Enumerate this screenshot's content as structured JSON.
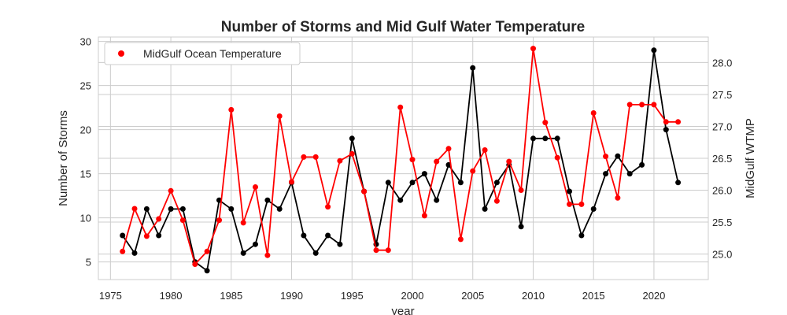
{
  "chart_data": {
    "type": "line",
    "title": "Number of Storms and Mid Gulf Water Temperature",
    "xlabel": "year",
    "ylabel": "Number of Storms",
    "ylabel_right": "MidGulf WTMP",
    "x": [
      1976,
      1977,
      1978,
      1979,
      1980,
      1981,
      1982,
      1983,
      1984,
      1985,
      1986,
      1987,
      1988,
      1989,
      1990,
      1991,
      1992,
      1993,
      1994,
      1995,
      1996,
      1997,
      1998,
      1999,
      2000,
      2001,
      2002,
      2003,
      2004,
      2005,
      2006,
      2007,
      2008,
      2009,
      2010,
      2011,
      2012,
      2013,
      2014,
      2015,
      2016,
      2017,
      2018,
      2019,
      2020,
      2021,
      2022
    ],
    "xlim": [
      1974,
      2024.5
    ],
    "xticks": [
      "1975",
      "1980",
      "1985",
      "1990",
      "1995",
      "2000",
      "2005",
      "2010",
      "2015",
      "2020"
    ],
    "ylim": [
      3,
      30.5
    ],
    "yticks": [
      "5",
      "10",
      "15",
      "20",
      "25",
      "30"
    ],
    "y2lim": [
      24.6,
      28.4
    ],
    "y2ticks": [
      "25.0",
      "25.5",
      "26.0",
      "26.5",
      "27.0",
      "27.5",
      "28.0"
    ],
    "grid": true,
    "legend_placement": "top-left",
    "series": [
      {
        "axis": "left",
        "color": "#000000",
        "values": [
          8,
          6,
          11,
          8,
          11,
          11,
          5,
          4,
          12,
          11,
          6,
          7,
          12,
          11,
          14,
          8,
          6,
          8,
          7,
          19,
          13,
          7,
          14,
          12,
          14,
          15,
          12,
          16,
          14,
          27,
          11,
          14,
          16,
          9,
          19,
          19,
          19,
          13,
          8,
          11,
          15,
          17,
          15,
          16,
          29,
          20,
          14
        ]
      },
      {
        "axis": "right",
        "name": "MidGulf Ocean Temperature",
        "color": "#ff0000",
        "values": [
          25.04,
          25.71,
          25.28,
          25.55,
          25.99,
          25.53,
          24.84,
          25.04,
          25.53,
          27.26,
          25.49,
          26.05,
          24.98,
          27.16,
          26.13,
          26.52,
          26.52,
          25.74,
          26.46,
          26.57,
          25.98,
          25.06,
          25.06,
          27.3,
          26.48,
          25.6,
          26.45,
          26.65,
          25.23,
          26.3,
          26.63,
          25.83,
          26.45,
          26.0,
          28.22,
          27.06,
          26.51,
          25.78,
          25.78,
          27.21,
          26.53,
          25.88,
          27.34,
          27.34,
          27.34,
          27.07,
          27.07
        ]
      }
    ]
  }
}
